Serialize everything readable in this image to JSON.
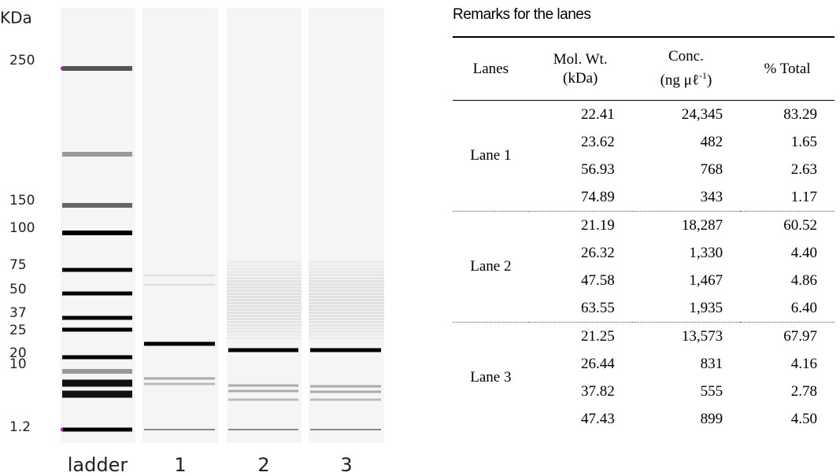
{
  "gel": {
    "unit_label": "KDa",
    "marker_labels": [
      "250",
      "150",
      "100",
      "75",
      "50",
      "37",
      "25",
      "20",
      "10",
      "1.2"
    ],
    "lane_labels": [
      "ladder",
      "1",
      "2",
      "3"
    ]
  },
  "table": {
    "title": "Remarks for the lanes",
    "header": {
      "lanes": "Lanes",
      "mw_line1": "Mol. Wt.",
      "mw_line2": "(kDa)",
      "conc_line1": "Conc.",
      "conc_line2": "(ng μℓ",
      "conc_sup": "-1",
      "conc_close": ")",
      "total": "% Total"
    },
    "groups": [
      {
        "lane": "Lane 1",
        "rows": [
          [
            "22.41",
            "24,345",
            "83.29"
          ],
          [
            "23.62",
            "482",
            "1.65"
          ],
          [
            "56.93",
            "768",
            "2.63"
          ],
          [
            "74.89",
            "343",
            "1.17"
          ]
        ]
      },
      {
        "lane": "Lane 2",
        "rows": [
          [
            "21.19",
            "18,287",
            "60.52"
          ],
          [
            "26.32",
            "1,330",
            "4.40"
          ],
          [
            "47.58",
            "1,467",
            "4.86"
          ],
          [
            "63.55",
            "1,935",
            "6.40"
          ]
        ]
      },
      {
        "lane": "Lane 3",
        "rows": [
          [
            "21.25",
            "13,573",
            "67.97"
          ],
          [
            "26.44",
            "831",
            "4.16"
          ],
          [
            "37.82",
            "555",
            "2.78"
          ],
          [
            "47.43",
            "899",
            "4.50"
          ]
        ]
      }
    ]
  }
}
